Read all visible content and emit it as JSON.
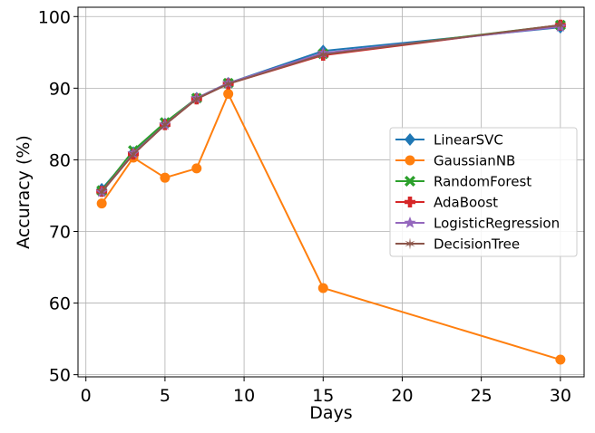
{
  "chart_data": {
    "type": "line",
    "title": "",
    "xlabel": "Days",
    "ylabel": "Accuracy (%)",
    "xlim": [
      -0.5,
      31.5
    ],
    "ylim": [
      49.7,
      101.3
    ],
    "xticks": [
      0,
      5,
      10,
      15,
      20,
      25,
      30
    ],
    "yticks": [
      50,
      60,
      70,
      80,
      90,
      100
    ],
    "grid": true,
    "legend_position": "center-right",
    "x": [
      1,
      3,
      5,
      7,
      9,
      15,
      30
    ],
    "series": [
      {
        "name": "LinearSVC",
        "color": "#1f77b4",
        "marker": "diamond",
        "values": [
          75.9,
          81.0,
          85.0,
          88.6,
          90.7,
          95.2,
          98.5
        ]
      },
      {
        "name": "GaussianNB",
        "color": "#ff7f0e",
        "marker": "circle",
        "values": [
          73.9,
          80.3,
          77.5,
          78.8,
          89.2,
          62.1,
          52.1
        ]
      },
      {
        "name": "RandomForest",
        "color": "#2ca02c",
        "marker": "x-filled",
        "values": [
          75.7,
          81.3,
          85.2,
          88.6,
          90.7,
          94.8,
          98.8
        ]
      },
      {
        "name": "AdaBoost",
        "color": "#d62728",
        "marker": "plus-filled",
        "values": [
          75.6,
          80.8,
          84.9,
          88.5,
          90.6,
          94.6,
          98.8
        ]
      },
      {
        "name": "LogisticRegression",
        "color": "#9467bd",
        "marker": "star",
        "values": [
          75.5,
          80.9,
          84.9,
          88.6,
          90.7,
          94.9,
          98.6
        ]
      },
      {
        "name": "DecisionTree",
        "color": "#8c564b",
        "marker": "tri-star",
        "values": [
          75.5,
          80.8,
          84.9,
          88.5,
          90.6,
          94.7,
          98.8
        ]
      }
    ]
  }
}
